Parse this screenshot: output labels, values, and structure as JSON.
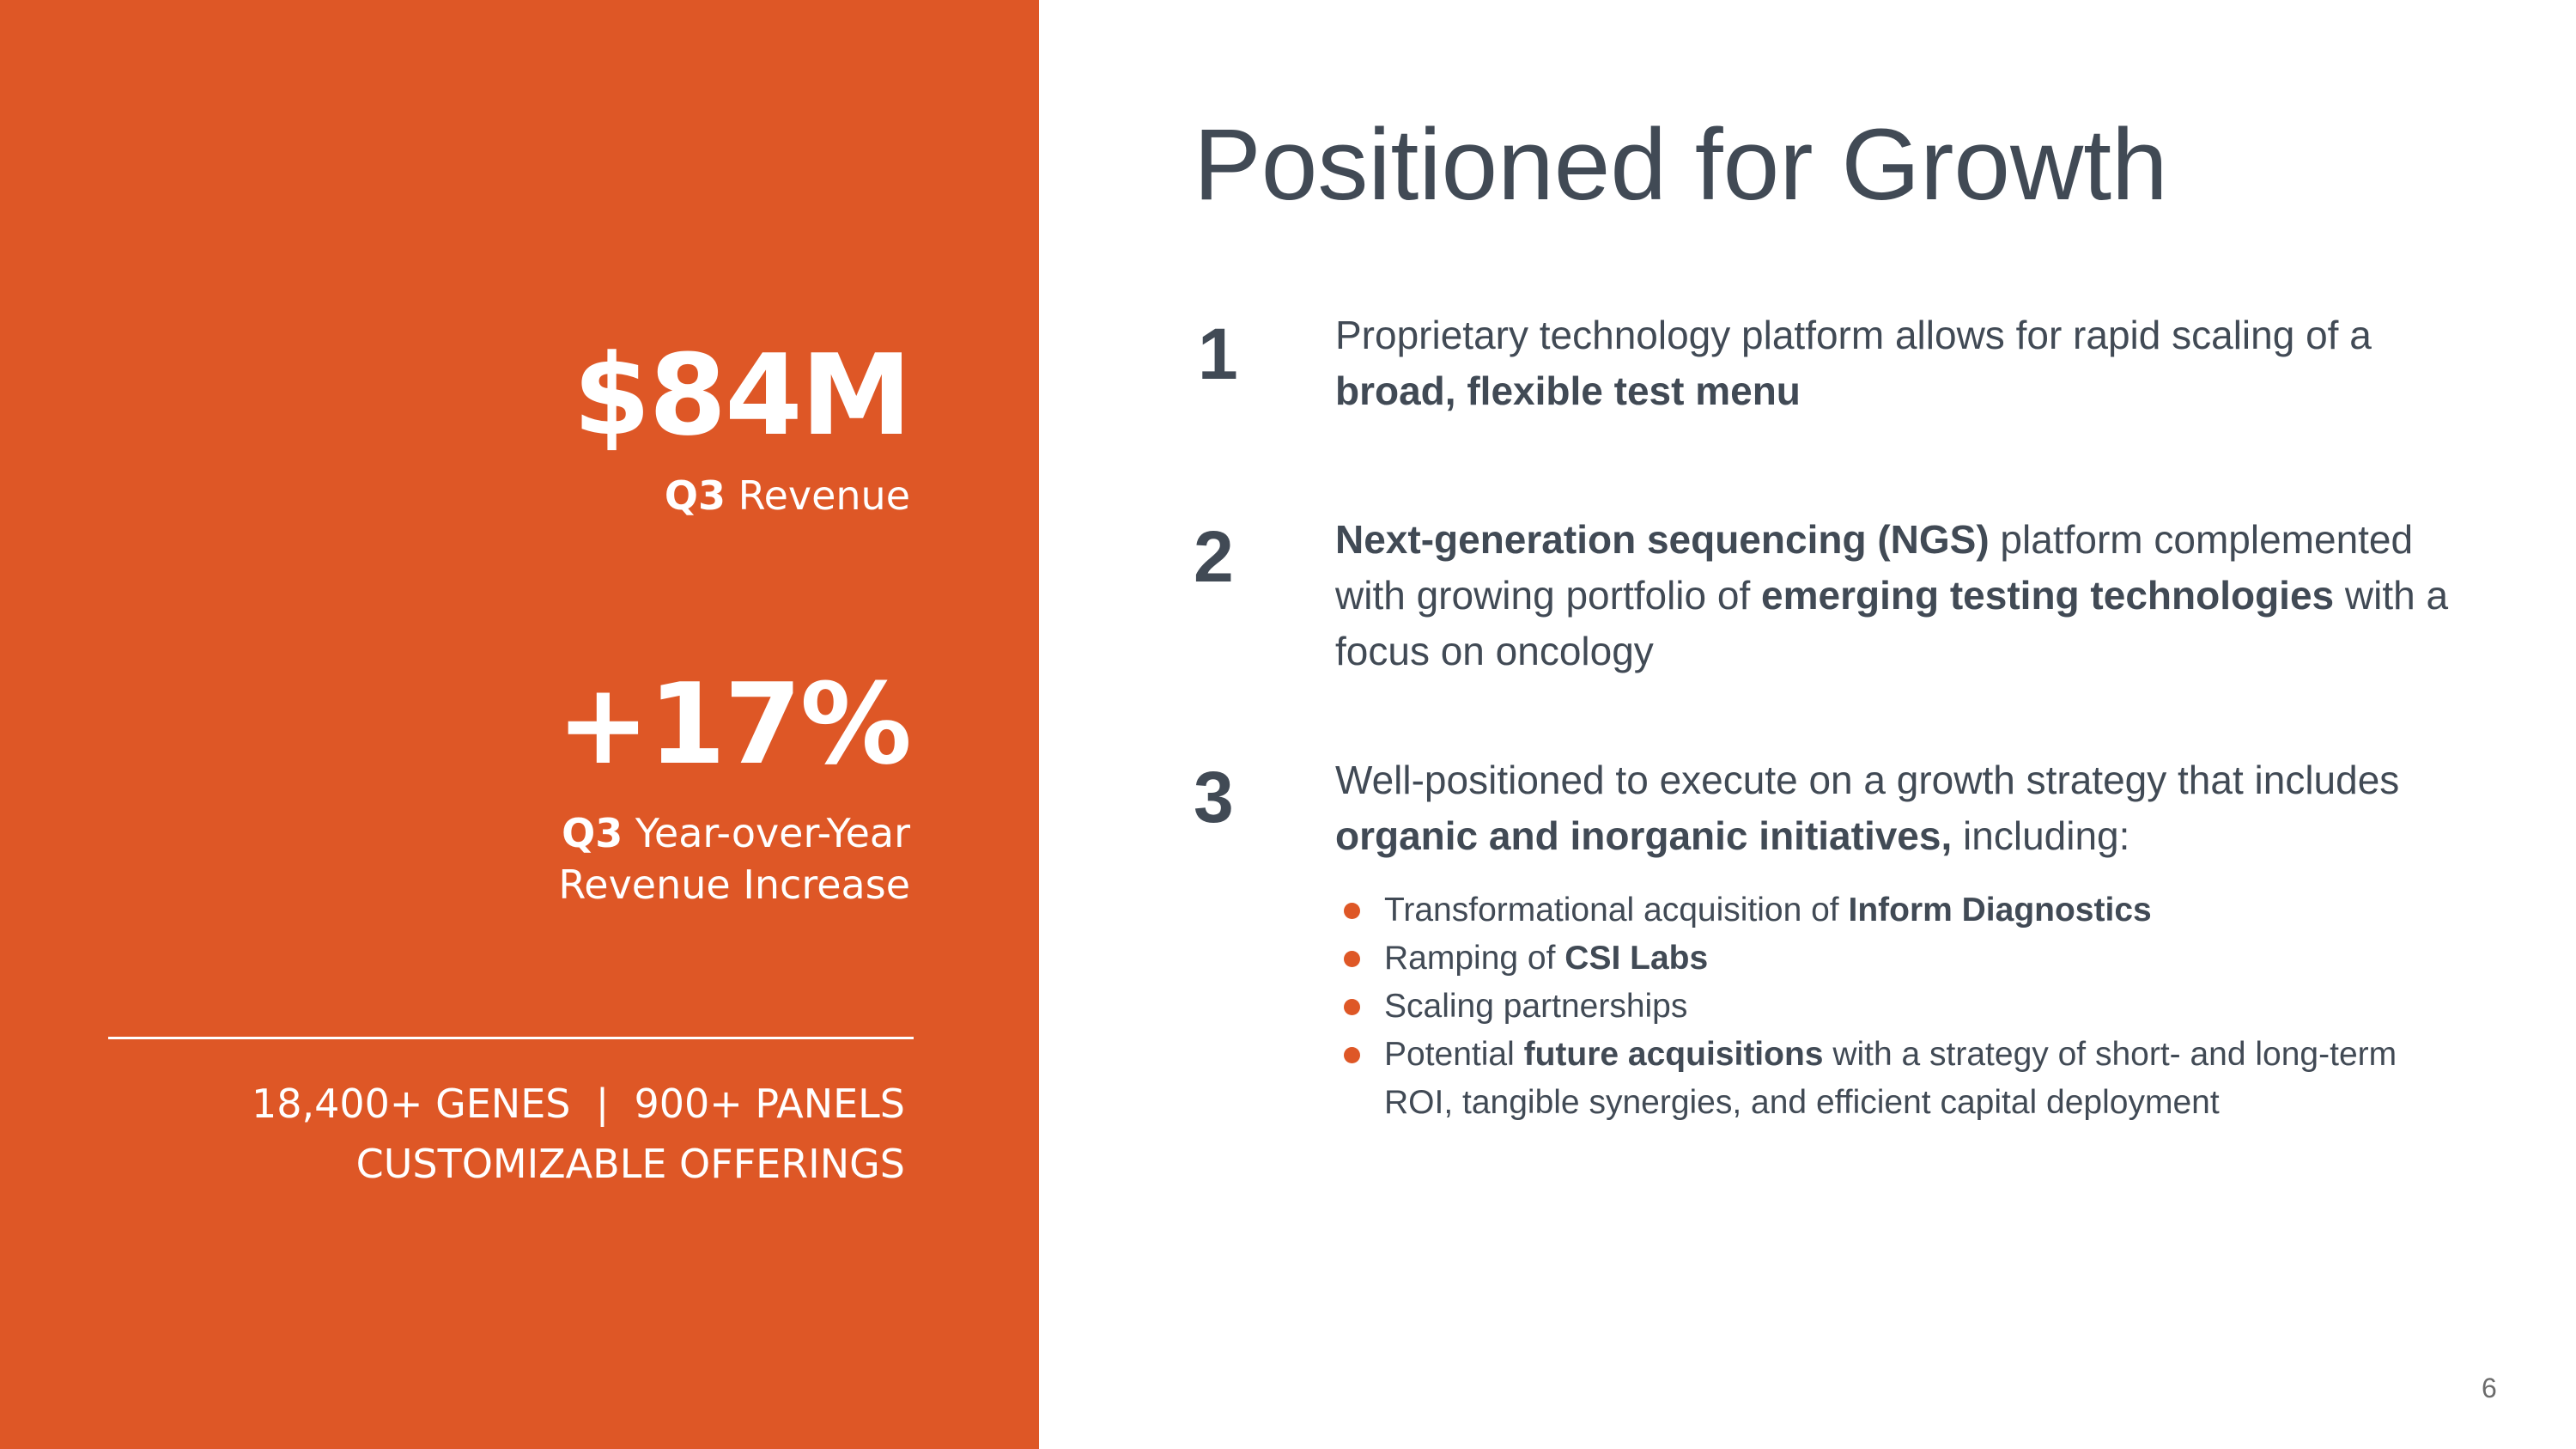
{
  "left": {
    "stat1": {
      "value": "$84M",
      "label_bold": "Q3",
      "label_rest": " Revenue"
    },
    "stat2": {
      "value": "+17%",
      "label_bold": "Q3",
      "label_line1_rest": " Year-over-Year",
      "label_line2": "Revenue Increase"
    },
    "features": {
      "line1": "18,400+ GENES  |  900+ PANELS",
      "line2": "CUSTOMIZABLE OFFERINGS"
    }
  },
  "title": "Positioned for Growth",
  "points": [
    {
      "number": "1",
      "text_a": "Proprietary technology platform allows for rapid scaling of a ",
      "bold_a": "broad, flexible test menu"
    },
    {
      "number": "2",
      "bold_a": "Next-generation sequencing (NGS)",
      "text_a": " platform complemented with growing portfolio of ",
      "bold_b": "emerging testing technologies",
      "text_b": " with a focus on oncology"
    },
    {
      "number": "3",
      "text_a": "Well-positioned to execute on a growth strategy that includes ",
      "bold_a": "organic and inorganic initiatives,",
      "text_b": " including:"
    }
  ],
  "bullets": [
    {
      "text_a": "Transformational acquisition of ",
      "bold": "Inform Diagnostics",
      "text_b": ""
    },
    {
      "text_a": "Ramping of ",
      "bold": "CSI Labs",
      "text_b": ""
    },
    {
      "text_a": "Scaling partnerships",
      "bold": "",
      "text_b": ""
    },
    {
      "text_a": "Potential ",
      "bold": "future acquisitions",
      "text_b": " with a strategy of short- and long-term ROI, tangible synergies, and efficient capital deployment"
    }
  ],
  "page_number": "6",
  "colors": {
    "accent": "#DE5726",
    "text": "#414A55",
    "white": "#FFFFFF"
  }
}
